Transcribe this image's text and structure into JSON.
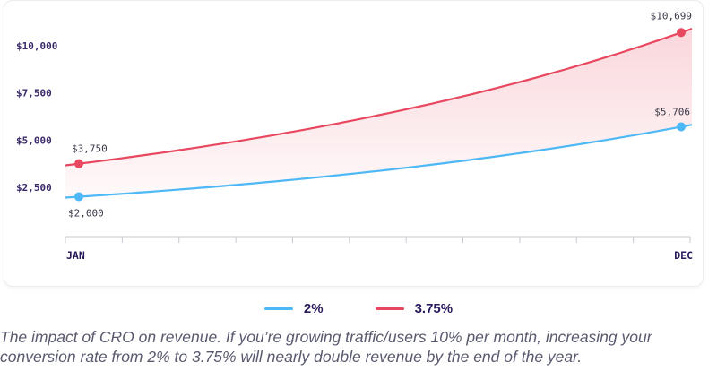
{
  "chart_data": {
    "type": "line",
    "x_labels": [
      "JAN",
      "DEC"
    ],
    "months": 12,
    "y_ticks": [
      "$10,000",
      "$7,500",
      "$5,000",
      "$2,500"
    ],
    "y_tick_values": [
      10000,
      7500,
      5000,
      2500
    ],
    "ylim": [
      0,
      11000
    ],
    "series": [
      {
        "name": "2%",
        "color": "#4db8f5",
        "start": 2000,
        "end": 5706,
        "start_label": "$2,000",
        "end_label": "$5,706"
      },
      {
        "name": "3.75%",
        "color": "#e8485f",
        "start": 3750,
        "end": 10699,
        "start_label": "$3,750",
        "end_label": "$10,699"
      }
    ],
    "grid": false,
    "legend_position": "bottom-center"
  },
  "caption": "The impact of CRO on revenue. If you’re growing traffic/users 10% per month, increasing your conversion rate from 2% to 3.75% will nearly double revenue by the end of the year."
}
